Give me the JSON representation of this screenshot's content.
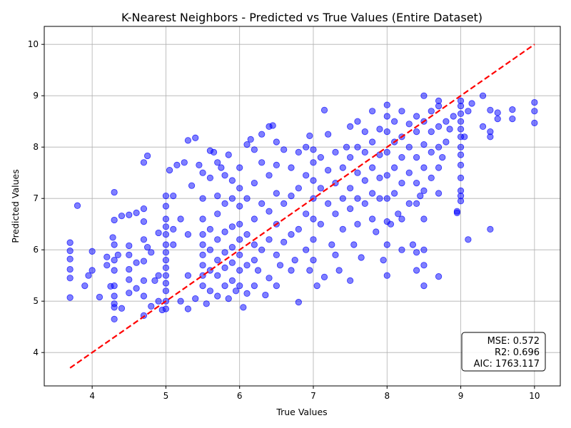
{
  "chart_data": {
    "type": "scatter",
    "title": "K-Nearest Neighbors - Predicted vs True Values (Entire Dataset)",
    "xlabel": "True Values",
    "ylabel": "Predicted Values",
    "xlim": [
      3.35,
      10.35
    ],
    "ylim": [
      3.35,
      10.35
    ],
    "xticks": [
      4,
      5,
      6,
      7,
      8,
      9,
      10
    ],
    "yticks": [
      4,
      5,
      6,
      7,
      8,
      9,
      10
    ],
    "grid": true,
    "point_color": "#0000ff",
    "reference_line": {
      "type": "y=x",
      "from": 3.7,
      "to": 10,
      "color": "#ff0000",
      "style": "dashed"
    },
    "stats_box": {
      "position": "bottom-right",
      "lines": [
        "MSE: 0.572",
        "R2: 0.696",
        "AIC: 1763.117"
      ]
    },
    "points": [
      [
        3.7,
        5.07
      ],
      [
        3.7,
        5.45
      ],
      [
        3.7,
        5.62
      ],
      [
        3.7,
        5.82
      ],
      [
        3.7,
        5.98
      ],
      [
        3.7,
        6.14
      ],
      [
        3.8,
        6.86
      ],
      [
        3.9,
        5.3
      ],
      [
        3.95,
        5.5
      ],
      [
        4.0,
        5.6
      ],
      [
        4.0,
        5.97
      ],
      [
        4.1,
        5.08
      ],
      [
        4.2,
        5.7
      ],
      [
        4.2,
        5.86
      ],
      [
        4.25,
        5.29
      ],
      [
        4.3,
        4.65
      ],
      [
        4.3,
        4.88
      ],
      [
        4.3,
        4.95
      ],
      [
        4.3,
        5.1
      ],
      [
        4.3,
        5.3
      ],
      [
        4.3,
        5.6
      ],
      [
        4.3,
        5.8
      ],
      [
        4.3,
        6.1
      ],
      [
        4.3,
        6.58
      ],
      [
        4.3,
        7.12
      ],
      [
        4.28,
        6.24
      ],
      [
        4.35,
        5.9
      ],
      [
        4.4,
        6.66
      ],
      [
        4.4,
        4.86
      ],
      [
        4.5,
        5.9
      ],
      [
        4.5,
        5.42
      ],
      [
        4.5,
        5.16
      ],
      [
        4.5,
        6.68
      ],
      [
        4.5,
        6.08
      ],
      [
        4.5,
        5.62
      ],
      [
        4.6,
        6.72
      ],
      [
        4.6,
        5.75
      ],
      [
        4.6,
        5.25
      ],
      [
        4.7,
        4.72
      ],
      [
        4.7,
        5.1
      ],
      [
        4.7,
        5.4
      ],
      [
        4.7,
        5.78
      ],
      [
        4.7,
        6.2
      ],
      [
        4.7,
        6.55
      ],
      [
        4.7,
        6.8
      ],
      [
        4.7,
        7.7
      ],
      [
        4.75,
        7.83
      ],
      [
        4.75,
        6.05
      ],
      [
        4.8,
        4.9
      ],
      [
        4.8,
        5.95
      ],
      [
        4.85,
        5.4
      ],
      [
        4.9,
        5.0
      ],
      [
        4.9,
        5.5
      ],
      [
        4.9,
        6.33
      ],
      [
        4.95,
        4.83
      ],
      [
        5.0,
        4.85
      ],
      [
        5.0,
        5.0
      ],
      [
        5.0,
        5.2
      ],
      [
        5.0,
        5.35
      ],
      [
        5.0,
        5.5
      ],
      [
        5.0,
        5.65
      ],
      [
        5.0,
        5.8
      ],
      [
        5.0,
        5.95
      ],
      [
        5.0,
        6.1
      ],
      [
        5.0,
        6.3
      ],
      [
        5.0,
        6.45
      ],
      [
        5.0,
        6.6
      ],
      [
        5.0,
        6.85
      ],
      [
        5.0,
        7.05
      ],
      [
        5.05,
        7.55
      ],
      [
        5.1,
        6.1
      ],
      [
        5.1,
        6.4
      ],
      [
        5.1,
        7.05
      ],
      [
        5.15,
        7.65
      ],
      [
        5.2,
        5.0
      ],
      [
        5.2,
        6.6
      ],
      [
        5.25,
        7.7
      ],
      [
        5.3,
        4.85
      ],
      [
        5.3,
        5.5
      ],
      [
        5.3,
        6.3
      ],
      [
        5.3,
        8.13
      ],
      [
        5.35,
        7.25
      ],
      [
        5.4,
        8.18
      ],
      [
        5.4,
        5.05
      ],
      [
        5.45,
        7.65
      ],
      [
        5.5,
        5.3
      ],
      [
        5.5,
        5.5
      ],
      [
        5.5,
        5.7
      ],
      [
        5.5,
        5.9
      ],
      [
        5.5,
        6.1
      ],
      [
        5.5,
        6.3
      ],
      [
        5.5,
        6.6
      ],
      [
        5.5,
        7.0
      ],
      [
        5.5,
        7.5
      ],
      [
        5.55,
        4.95
      ],
      [
        5.6,
        5.2
      ],
      [
        5.6,
        5.6
      ],
      [
        5.6,
        6.0
      ],
      [
        5.6,
        6.4
      ],
      [
        5.6,
        7.4
      ],
      [
        5.6,
        7.93
      ],
      [
        5.65,
        7.9
      ],
      [
        5.7,
        5.1
      ],
      [
        5.7,
        5.5
      ],
      [
        5.7,
        5.8
      ],
      [
        5.7,
        6.2
      ],
      [
        5.7,
        6.7
      ],
      [
        5.7,
        7.05
      ],
      [
        5.7,
        7.7
      ],
      [
        5.75,
        7.6
      ],
      [
        5.8,
        5.3
      ],
      [
        5.8,
        5.65
      ],
      [
        5.8,
        5.95
      ],
      [
        5.8,
        6.35
      ],
      [
        5.8,
        6.9
      ],
      [
        5.8,
        7.45
      ],
      [
        5.85,
        7.85
      ],
      [
        5.85,
        5.05
      ],
      [
        5.9,
        5.4
      ],
      [
        5.9,
        5.75
      ],
      [
        5.9,
        6.05
      ],
      [
        5.9,
        6.45
      ],
      [
        5.9,
        7.0
      ],
      [
        5.9,
        7.35
      ],
      [
        5.95,
        5.2
      ],
      [
        6.0,
        5.3
      ],
      [
        6.0,
        5.6
      ],
      [
        6.0,
        5.9
      ],
      [
        6.0,
        6.2
      ],
      [
        6.0,
        6.5
      ],
      [
        6.0,
        6.85
      ],
      [
        6.0,
        7.2
      ],
      [
        6.0,
        7.6
      ],
      [
        6.05,
        4.88
      ],
      [
        6.1,
        5.15
      ],
      [
        6.1,
        5.7
      ],
      [
        6.1,
        6.3
      ],
      [
        6.1,
        7.0
      ],
      [
        6.1,
        8.05
      ],
      [
        6.15,
        8.15
      ],
      [
        6.2,
        5.3
      ],
      [
        6.2,
        5.8
      ],
      [
        6.2,
        6.1
      ],
      [
        6.2,
        6.6
      ],
      [
        6.2,
        7.3
      ],
      [
        6.2,
        7.95
      ],
      [
        6.25,
        5.6
      ],
      [
        6.3,
        6.0
      ],
      [
        6.3,
        6.9
      ],
      [
        6.3,
        7.7
      ],
      [
        6.3,
        8.25
      ],
      [
        6.35,
        5.12
      ],
      [
        6.4,
        5.45
      ],
      [
        6.4,
        6.2
      ],
      [
        6.4,
        6.75
      ],
      [
        6.4,
        7.45
      ],
      [
        6.4,
        8.4
      ],
      [
        6.45,
        8.42
      ],
      [
        6.5,
        5.3
      ],
      [
        6.5,
        5.9
      ],
      [
        6.5,
        6.5
      ],
      [
        6.5,
        7.1
      ],
      [
        6.5,
        7.65
      ],
      [
        6.5,
        8.1
      ],
      [
        6.55,
        5.7
      ],
      [
        6.6,
        6.15
      ],
      [
        6.6,
        6.9
      ],
      [
        6.6,
        7.95
      ],
      [
        6.7,
        5.6
      ],
      [
        6.7,
        6.3
      ],
      [
        6.7,
        7.05
      ],
      [
        6.7,
        7.6
      ],
      [
        6.75,
        5.8
      ],
      [
        6.8,
        4.98
      ],
      [
        6.8,
        6.4
      ],
      [
        6.8,
        7.2
      ],
      [
        6.8,
        7.9
      ],
      [
        6.9,
        6.0
      ],
      [
        6.9,
        6.7
      ],
      [
        6.9,
        7.45
      ],
      [
        6.9,
        8.0
      ],
      [
        6.95,
        8.22
      ],
      [
        6.95,
        5.6
      ],
      [
        7.0,
        5.8
      ],
      [
        7.0,
        6.2
      ],
      [
        7.0,
        6.6
      ],
      [
        7.0,
        7.0
      ],
      [
        7.0,
        7.35
      ],
      [
        7.0,
        7.7
      ],
      [
        7.0,
        7.95
      ],
      [
        7.05,
        5.3
      ],
      [
        7.1,
        6.5
      ],
      [
        7.1,
        7.2
      ],
      [
        7.1,
        7.8
      ],
      [
        7.15,
        5.47
      ],
      [
        7.15,
        8.72
      ],
      [
        7.2,
        6.9
      ],
      [
        7.2,
        7.55
      ],
      [
        7.2,
        8.25
      ],
      [
        7.25,
        6.1
      ],
      [
        7.3,
        5.9
      ],
      [
        7.3,
        6.7
      ],
      [
        7.3,
        7.3
      ],
      [
        7.3,
        7.9
      ],
      [
        7.35,
        5.6
      ],
      [
        7.4,
        6.4
      ],
      [
        7.4,
        7.0
      ],
      [
        7.4,
        7.6
      ],
      [
        7.45,
        8.0
      ],
      [
        7.5,
        6.8
      ],
      [
        7.5,
        7.2
      ],
      [
        7.5,
        7.8
      ],
      [
        7.5,
        8.4
      ],
      [
        7.5,
        5.4
      ],
      [
        7.55,
        6.1
      ],
      [
        7.6,
        6.5
      ],
      [
        7.6,
        7.0
      ],
      [
        7.6,
        7.5
      ],
      [
        7.6,
        8.0
      ],
      [
        7.6,
        8.5
      ],
      [
        7.65,
        5.85
      ],
      [
        7.7,
        6.9
      ],
      [
        7.7,
        7.35
      ],
      [
        7.7,
        7.9
      ],
      [
        7.7,
        8.3
      ],
      [
        7.8,
        6.6
      ],
      [
        7.8,
        7.1
      ],
      [
        7.8,
        7.6
      ],
      [
        7.8,
        8.1
      ],
      [
        7.8,
        8.7
      ],
      [
        7.85,
        6.35
      ],
      [
        7.9,
        7.0
      ],
      [
        7.9,
        7.4
      ],
      [
        7.9,
        7.85
      ],
      [
        7.9,
        8.35
      ],
      [
        7.95,
        5.8
      ],
      [
        8.0,
        5.5
      ],
      [
        8.0,
        6.1
      ],
      [
        8.0,
        6.55
      ],
      [
        8.0,
        7.0
      ],
      [
        8.0,
        7.45
      ],
      [
        8.0,
        7.9
      ],
      [
        8.0,
        8.3
      ],
      [
        8.0,
        8.6
      ],
      [
        8.0,
        8.82
      ],
      [
        8.05,
        6.5
      ],
      [
        8.1,
        7.1
      ],
      [
        8.1,
        7.6
      ],
      [
        8.1,
        8.1
      ],
      [
        8.1,
        8.5
      ],
      [
        8.15,
        6.7
      ],
      [
        8.2,
        6.0
      ],
      [
        8.2,
        6.6
      ],
      [
        8.2,
        7.3
      ],
      [
        8.2,
        7.8
      ],
      [
        8.2,
        8.2
      ],
      [
        8.2,
        8.7
      ],
      [
        8.3,
        6.9
      ],
      [
        8.3,
        7.5
      ],
      [
        8.3,
        8.0
      ],
      [
        8.3,
        8.45
      ],
      [
        8.35,
        6.1
      ],
      [
        8.4,
        5.6
      ],
      [
        8.4,
        5.95
      ],
      [
        8.4,
        6.9
      ],
      [
        8.4,
        7.3
      ],
      [
        8.4,
        7.8
      ],
      [
        8.4,
        8.3
      ],
      [
        8.4,
        8.6
      ],
      [
        8.45,
        7.05
      ],
      [
        8.5,
        5.3
      ],
      [
        8.5,
        5.7
      ],
      [
        8.5,
        6.0
      ],
      [
        8.5,
        6.6
      ],
      [
        8.5,
        7.15
      ],
      [
        8.5,
        7.6
      ],
      [
        8.5,
        8.05
      ],
      [
        8.5,
        8.5
      ],
      [
        8.5,
        9.0
      ],
      [
        8.6,
        7.4
      ],
      [
        8.6,
        7.9
      ],
      [
        8.6,
        8.3
      ],
      [
        8.6,
        8.7
      ],
      [
        8.7,
        5.48
      ],
      [
        8.7,
        7.1
      ],
      [
        8.7,
        7.6
      ],
      [
        8.7,
        8.0
      ],
      [
        8.7,
        8.4
      ],
      [
        8.7,
        8.8
      ],
      [
        8.7,
        8.9
      ],
      [
        8.75,
        7.8
      ],
      [
        8.8,
        8.1
      ],
      [
        8.8,
        8.5
      ],
      [
        8.85,
        8.35
      ],
      [
        8.9,
        8.6
      ],
      [
        8.95,
        6.72
      ],
      [
        8.95,
        6.75
      ],
      [
        9.0,
        6.95
      ],
      [
        9.0,
        7.05
      ],
      [
        9.0,
        7.15
      ],
      [
        9.0,
        7.4
      ],
      [
        9.0,
        7.65
      ],
      [
        9.0,
        7.85
      ],
      [
        9.0,
        8.0
      ],
      [
        9.0,
        8.2
      ],
      [
        9.0,
        8.35
      ],
      [
        9.0,
        8.5
      ],
      [
        9.0,
        8.65
      ],
      [
        9.0,
        8.8
      ],
      [
        9.0,
        8.9
      ],
      [
        9.05,
        8.2
      ],
      [
        9.1,
        6.2
      ],
      [
        9.1,
        8.7
      ],
      [
        9.15,
        8.85
      ],
      [
        9.3,
        8.4
      ],
      [
        9.3,
        9.0
      ],
      [
        9.4,
        6.4
      ],
      [
        9.4,
        8.2
      ],
      [
        9.4,
        8.3
      ],
      [
        9.4,
        8.72
      ],
      [
        9.5,
        8.55
      ],
      [
        9.5,
        8.67
      ],
      [
        9.7,
        8.55
      ],
      [
        9.7,
        8.73
      ],
      [
        10.0,
        8.47
      ],
      [
        10.0,
        8.7
      ],
      [
        10.0,
        8.87
      ]
    ]
  }
}
